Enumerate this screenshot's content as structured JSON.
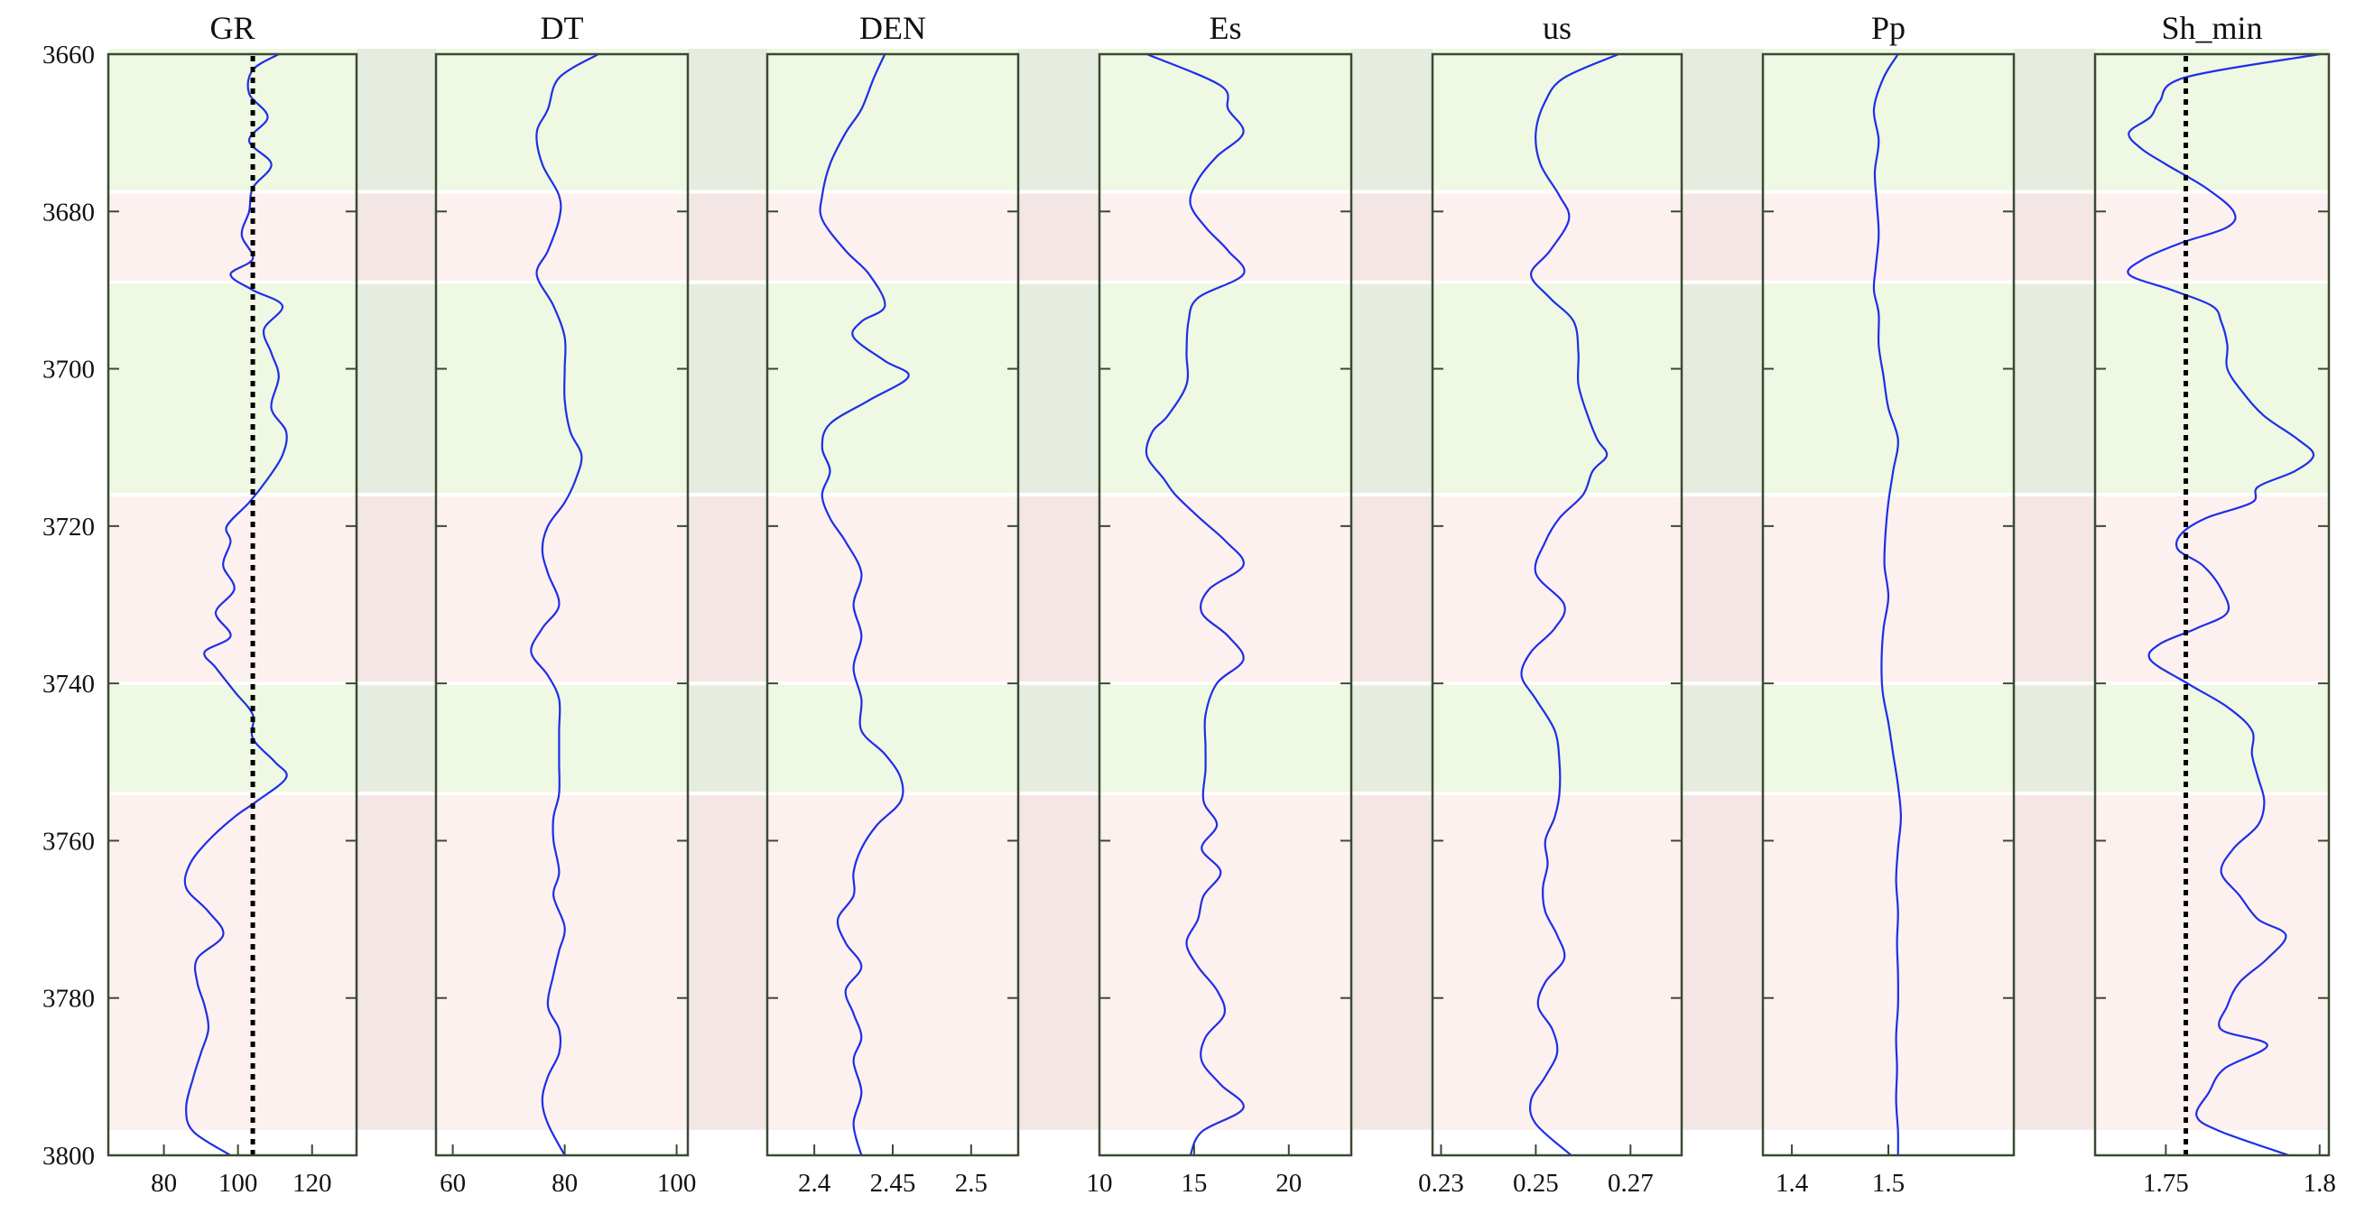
{
  "chart_data": {
    "type": "line",
    "layout": "well-log-tracks",
    "depth_axis": {
      "ylim": [
        3660,
        3800
      ],
      "ticks": [
        3660,
        3680,
        3700,
        3720,
        3740,
        3760,
        3780,
        3800
      ],
      "tick_labels": [
        "3660",
        "3680",
        "3700",
        "3720",
        "3740",
        "3760",
        "3780",
        "3800"
      ],
      "reversed": true
    },
    "bands": [
      {
        "from": 3660,
        "to": 3677.5,
        "class": "green"
      },
      {
        "from": 3677.5,
        "to": 3689,
        "class": "pink"
      },
      {
        "from": 3689,
        "to": 3716,
        "class": "green"
      },
      {
        "from": 3716,
        "to": 3740,
        "class": "pink"
      },
      {
        "from": 3740,
        "to": 3754,
        "class": "green"
      },
      {
        "from": 3754,
        "to": 3797,
        "class": "pink"
      }
    ],
    "colors": {
      "green_band": "#eef8e2",
      "pink_band": "#fcf1ef",
      "green_gap": "#e6ece0",
      "pink_gap": "#f3e6e4",
      "curve": "#1e2ee8",
      "frame": "#3a4a35",
      "reference_line": "#000000"
    },
    "tracks": [
      {
        "title": "GR",
        "xlim": [
          65,
          132
        ],
        "xticks": [
          80,
          100,
          120
        ],
        "xtick_labels": [
          "80",
          "100",
          "120"
        ],
        "reference_x": 104,
        "depth": [
          3660,
          3662,
          3665,
          3668,
          3671,
          3674,
          3677,
          3680,
          3683,
          3686,
          3688,
          3690,
          3692,
          3695,
          3698,
          3701,
          3705,
          3708,
          3711,
          3714,
          3717,
          3720,
          3722,
          3725,
          3728,
          3731,
          3734,
          3736,
          3738,
          3741,
          3744,
          3747,
          3750,
          3752,
          3755,
          3757,
          3760,
          3763,
          3766,
          3769,
          3772,
          3775,
          3778,
          3781,
          3784,
          3787,
          3790,
          3794,
          3797,
          3800
        ],
        "values": [
          111,
          104,
          103,
          108,
          103,
          109,
          104,
          103,
          101,
          104,
          98,
          104,
          112,
          107,
          109,
          111,
          109,
          113,
          112,
          108,
          103,
          97,
          98,
          96,
          99,
          94,
          98,
          91,
          94,
          99,
          104,
          104,
          110,
          113,
          105,
          99,
          92,
          87,
          86,
          92,
          96,
          89,
          89,
          91,
          92,
          90,
          88,
          86,
          88,
          98
        ]
      },
      {
        "title": "DT",
        "xlim": [
          57,
          102
        ],
        "xticks": [
          60,
          80,
          100
        ],
        "xtick_labels": [
          "60",
          "80",
          "100"
        ],
        "depth": [
          3660,
          3663,
          3667,
          3670,
          3674,
          3678,
          3681,
          3685,
          3688,
          3692,
          3696,
          3700,
          3704,
          3708,
          3711,
          3714,
          3717,
          3720,
          3723,
          3726,
          3730,
          3733,
          3736,
          3739,
          3742,
          3746,
          3750,
          3754,
          3757,
          3760,
          3764,
          3767,
          3771,
          3774,
          3777,
          3781,
          3784,
          3787,
          3790,
          3793,
          3796,
          3800
        ],
        "values": [
          86,
          79,
          77,
          75,
          76,
          79,
          79,
          77,
          75,
          78,
          80,
          80,
          80,
          81,
          83,
          82,
          80,
          77,
          76,
          77,
          79,
          76,
          74,
          77,
          79,
          79,
          79,
          79,
          78,
          78,
          79,
          78,
          80,
          79,
          78,
          77,
          79,
          79,
          77,
          76,
          77,
          80
        ]
      },
      {
        "title": "DEN",
        "xlim": [
          2.37,
          2.53
        ],
        "xticks": [
          2.4,
          2.45,
          2.5
        ],
        "xtick_labels": [
          "2.4",
          "2.45",
          "2.5"
        ],
        "depth": [
          3660,
          3663,
          3667,
          3670,
          3674,
          3678,
          3681,
          3685,
          3688,
          3692,
          3694,
          3696,
          3699,
          3701,
          3704,
          3707,
          3710,
          3713,
          3716,
          3719,
          3722,
          3726,
          3730,
          3734,
          3738,
          3742,
          3746,
          3749,
          3752,
          3755,
          3758,
          3761,
          3764,
          3767,
          3770,
          3773,
          3776,
          3779,
          3782,
          3785,
          3788,
          3792,
          3796,
          3800
        ],
        "values": [
          2.445,
          2.438,
          2.43,
          2.42,
          2.41,
          2.405,
          2.405,
          2.42,
          2.435,
          2.445,
          2.43,
          2.425,
          2.445,
          2.46,
          2.435,
          2.41,
          2.405,
          2.41,
          2.405,
          2.41,
          2.42,
          2.43,
          2.425,
          2.43,
          2.425,
          2.43,
          2.43,
          2.445,
          2.455,
          2.455,
          2.44,
          2.43,
          2.425,
          2.425,
          2.415,
          2.42,
          2.43,
          2.42,
          2.425,
          2.43,
          2.425,
          2.43,
          2.425,
          2.43
        ]
      },
      {
        "title": "Es",
        "xlim": [
          10,
          23.3
        ],
        "xticks": [
          10,
          15,
          20
        ],
        "xtick_labels": [
          "10",
          "15",
          "20"
        ],
        "depth": [
          3660,
          3664,
          3667,
          3670,
          3673,
          3676,
          3679,
          3682,
          3685,
          3688,
          3691,
          3694,
          3698,
          3702,
          3706,
          3708,
          3711,
          3714,
          3716,
          3719,
          3722,
          3725,
          3728,
          3731,
          3734,
          3737,
          3740,
          3744,
          3748,
          3751,
          3755,
          3758,
          3761,
          3764,
          3767,
          3770,
          3773,
          3776,
          3779,
          3782,
          3785,
          3788,
          3791,
          3794,
          3797,
          3800
        ],
        "values": [
          12.5,
          16.4,
          16.8,
          17.6,
          16.2,
          15.2,
          14.8,
          15.6,
          16.8,
          17.6,
          15.2,
          14.7,
          14.6,
          14.6,
          13.6,
          12.8,
          12.5,
          13.4,
          14.0,
          15.3,
          16.7,
          17.6,
          15.8,
          15.4,
          16.8,
          17.6,
          16.2,
          15.6,
          15.6,
          15.6,
          15.5,
          16.2,
          15.4,
          16.4,
          15.5,
          15.2,
          14.6,
          15.2,
          16.2,
          16.6,
          15.6,
          15.4,
          16.4,
          17.6,
          15.4,
          14.8
        ]
      },
      {
        "title": "us",
        "xlim": [
          0.2282,
          0.2808
        ],
        "xticks": [
          0.23,
          0.25,
          0.27
        ],
        "xtick_labels": [
          "0.23",
          "0.25",
          "0.27"
        ],
        "depth": [
          3660,
          3663,
          3666,
          3670,
          3674,
          3678,
          3681,
          3685,
          3688,
          3691,
          3694,
          3698,
          3702,
          3706,
          3709,
          3711,
          3713,
          3716,
          3719,
          3722,
          3726,
          3730,
          3733,
          3736,
          3739,
          3742,
          3746,
          3750,
          3754,
          3757,
          3760,
          3763,
          3766,
          3769,
          3772,
          3775,
          3778,
          3781,
          3784,
          3787,
          3790,
          3793,
          3796,
          3800
        ],
        "values": [
          0.2675,
          0.256,
          0.252,
          0.25,
          0.251,
          0.255,
          0.257,
          0.253,
          0.249,
          0.253,
          0.258,
          0.259,
          0.259,
          0.261,
          0.263,
          0.265,
          0.262,
          0.26,
          0.255,
          0.252,
          0.25,
          0.256,
          0.254,
          0.249,
          0.247,
          0.25,
          0.254,
          0.255,
          0.255,
          0.254,
          0.252,
          0.2525,
          0.2515,
          0.252,
          0.2545,
          0.256,
          0.252,
          0.2505,
          0.2535,
          0.2545,
          0.252,
          0.249,
          0.25,
          0.2575
        ]
      },
      {
        "title": "Pp",
        "xlim": [
          1.37,
          1.63
        ],
        "xticks": [
          1.4,
          1.5
        ],
        "xtick_labels": [
          "1.4",
          "1.5"
        ],
        "depth": [
          3660,
          3663,
          3667,
          3671,
          3675,
          3679,
          3683,
          3687,
          3690,
          3693,
          3697,
          3701,
          3705,
          3709,
          3713,
          3717,
          3721,
          3725,
          3729,
          3733,
          3737,
          3741,
          3745,
          3749,
          3753,
          3757,
          3761,
          3765,
          3769,
          3773,
          3777,
          3781,
          3785,
          3789,
          3793,
          3797,
          3800
        ],
        "values": [
          1.51,
          1.495,
          1.485,
          1.49,
          1.486,
          1.488,
          1.49,
          1.487,
          1.485,
          1.49,
          1.49,
          1.495,
          1.5,
          1.51,
          1.505,
          1.5,
          1.497,
          1.496,
          1.5,
          1.495,
          1.493,
          1.494,
          1.5,
          1.505,
          1.51,
          1.513,
          1.51,
          1.508,
          1.51,
          1.509,
          1.51,
          1.51,
          1.508,
          1.509,
          1.508,
          1.51,
          1.51
        ]
      },
      {
        "title": "Sh_min",
        "xlim": [
          1.727,
          1.803
        ],
        "xticks": [
          1.75,
          1.8
        ],
        "xtick_labels": [
          "1.75",
          "1.8"
        ],
        "reference_x": 1.7565,
        "depth": [
          3660,
          3663,
          3666,
          3668,
          3670,
          3672,
          3674,
          3677,
          3680,
          3682,
          3684,
          3686,
          3688,
          3690,
          3692,
          3694,
          3697,
          3700,
          3703,
          3706,
          3709,
          3711,
          3713,
          3715,
          3717,
          3719,
          3721,
          3723,
          3725,
          3728,
          3731,
          3733,
          3735,
          3737,
          3740,
          3743,
          3746,
          3749,
          3752,
          3755,
          3758,
          3761,
          3764,
          3767,
          3770,
          3772,
          3775,
          3778,
          3781,
          3784,
          3786,
          3789,
          3792,
          3795,
          3797,
          3800
        ],
        "values": [
          1.8,
          1.756,
          1.748,
          1.745,
          1.738,
          1.742,
          1.75,
          1.763,
          1.772,
          1.77,
          1.755,
          1.743,
          1.738,
          1.752,
          1.765,
          1.768,
          1.77,
          1.77,
          1.775,
          1.782,
          1.793,
          1.798,
          1.792,
          1.78,
          1.778,
          1.763,
          1.755,
          1.754,
          1.762,
          1.768,
          1.77,
          1.76,
          1.748,
          1.745,
          1.757,
          1.77,
          1.778,
          1.778,
          1.78,
          1.782,
          1.78,
          1.772,
          1.768,
          1.774,
          1.78,
          1.789,
          1.783,
          1.774,
          1.77,
          1.768,
          1.783,
          1.769,
          1.764,
          1.76,
          1.768,
          1.79
        ]
      }
    ]
  }
}
